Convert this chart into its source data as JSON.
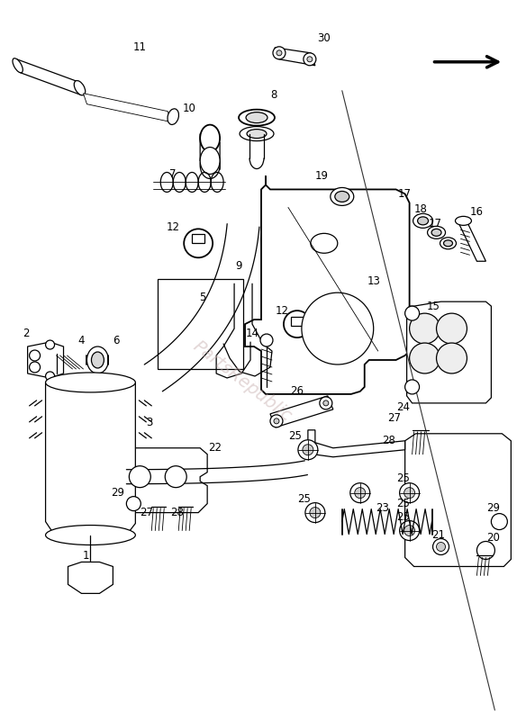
{
  "bg_color": "#ffffff",
  "line_color": "#000000",
  "watermark": "PartsRepublic",
  "watermark_color": "#c8b0b0",
  "fig_width": 5.84,
  "fig_height": 8.0,
  "dpi": 100
}
